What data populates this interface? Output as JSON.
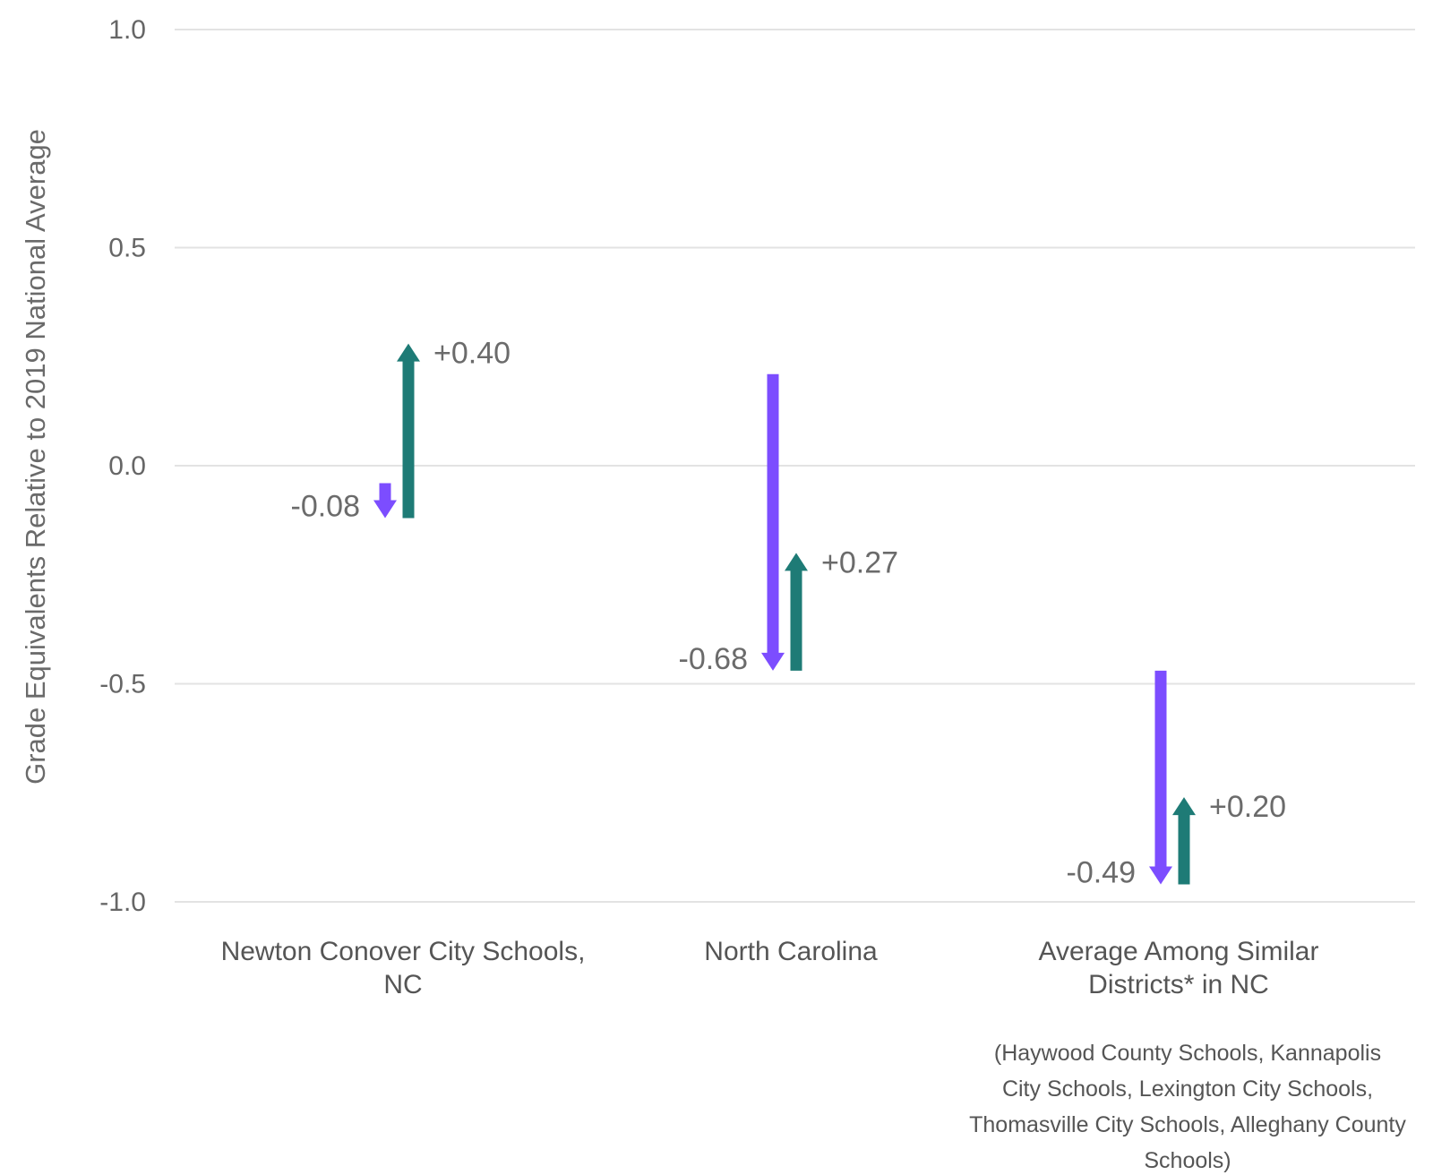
{
  "chart_data": {
    "type": "arrow",
    "ylabel": "Grade Equivalents Relative to 2019 National Average",
    "ylim": [
      -1.0,
      1.0
    ],
    "yticks": [
      "1.0",
      "0.5",
      "0.0",
      "-0.5",
      "-1.0"
    ],
    "ytick_values": [
      1.0,
      0.5,
      0.0,
      -0.5,
      -1.0
    ],
    "grid": true,
    "colors": {
      "decline": "#7c4dff",
      "recovery": "#1e7b76",
      "grid": "#e3e3e3"
    },
    "categories": [
      {
        "name_lines": [
          "Newton Conover City Schools,",
          "NC"
        ],
        "decline": {
          "from": -0.04,
          "to": -0.12,
          "label": "-0.08"
        },
        "recovery": {
          "from": -0.12,
          "to": 0.28,
          "label": "+0.40"
        },
        "note_lines": []
      },
      {
        "name_lines": [
          "North Carolina"
        ],
        "decline": {
          "from": 0.21,
          "to": -0.47,
          "label": "-0.68"
        },
        "recovery": {
          "from": -0.47,
          "to": -0.2,
          "label": "+0.27"
        },
        "note_lines": []
      },
      {
        "name_lines": [
          "Average Among Similar",
          "Districts* in NC"
        ],
        "decline": {
          "from": -0.47,
          "to": -0.96,
          "label": "-0.49"
        },
        "recovery": {
          "from": -0.96,
          "to": -0.76,
          "label": "+0.20"
        },
        "note_lines": [
          "(Haywood County Schools, Kannapolis",
          "City Schools, Lexington City Schools,",
          "Thomasville City Schools, Alleghany County",
          "Schools)"
        ]
      }
    ]
  }
}
